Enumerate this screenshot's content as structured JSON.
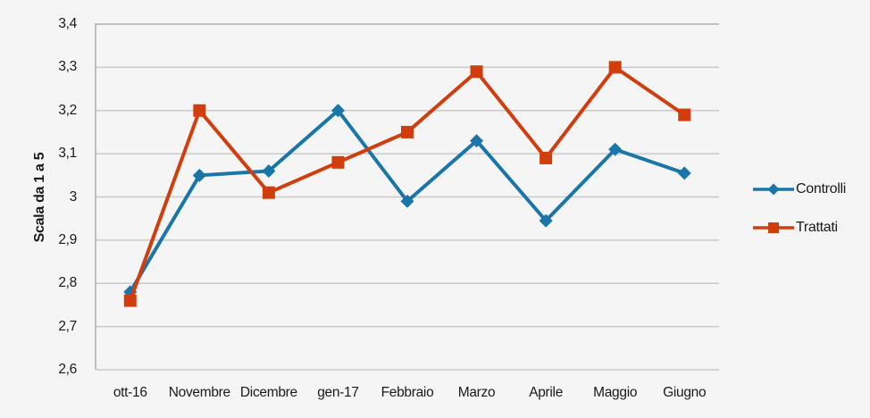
{
  "chart_data": {
    "type": "line",
    "title": "",
    "xlabel": "",
    "ylabel": "Scala da 1 a 5",
    "ylim": [
      2.6,
      3.4
    ],
    "ytick_step": 0.1,
    "ytick_labels": [
      "3,4",
      "3,3",
      "3,2",
      "3,1",
      "3",
      "2,9",
      "2,8",
      "2,7",
      "2,6"
    ],
    "categories": [
      "ott-16",
      "Novembre",
      "Dicembre",
      "gen-17",
      "Febbraio",
      "Marzo",
      "Aprile",
      "Maggio",
      "Giugno"
    ],
    "series": [
      {
        "name": "Controlli",
        "marker": "diamond",
        "color": "#1A76A8",
        "values": [
          2.78,
          3.05,
          3.06,
          3.2,
          2.99,
          3.13,
          2.945,
          3.11,
          3.055
        ]
      },
      {
        "name": "Trattati",
        "marker": "square",
        "color": "#D23D0E",
        "values": [
          2.76,
          3.2,
          3.01,
          3.08,
          3.15,
          3.29,
          3.09,
          3.3,
          3.19
        ]
      }
    ],
    "legend_position": "right",
    "grid": "horizontal",
    "colors": {
      "background": "#F5F5F5",
      "gridline": "#C9C9C9",
      "axis_border": "#BFBFBF",
      "text": "#1A1A1A"
    }
  }
}
